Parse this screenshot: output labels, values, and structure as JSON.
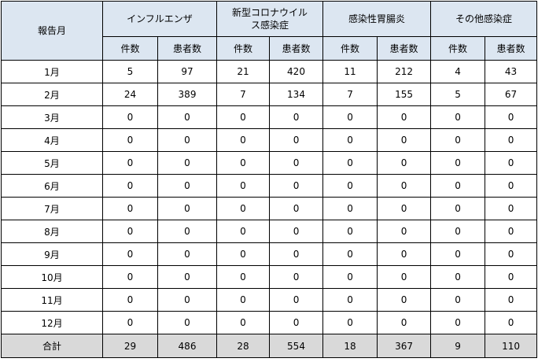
{
  "table": {
    "month_header": "報告月",
    "groups": [
      {
        "name": "インフルエンザ"
      },
      {
        "name": "新型コロナウイルス感染症"
      },
      {
        "name": "感染性胃腸炎"
      },
      {
        "name": "その他感染症"
      }
    ],
    "sub_headers": {
      "cases": "件数",
      "patients": "患者数"
    },
    "rows": [
      {
        "month": "1月",
        "v": [
          "5",
          "97",
          "21",
          "420",
          "11",
          "212",
          "4",
          "43"
        ]
      },
      {
        "month": "2月",
        "v": [
          "24",
          "389",
          "7",
          "134",
          "7",
          "155",
          "5",
          "67"
        ]
      },
      {
        "month": "3月",
        "v": [
          "0",
          "0",
          "0",
          "0",
          "0",
          "0",
          "0",
          "0"
        ]
      },
      {
        "month": "4月",
        "v": [
          "0",
          "0",
          "0",
          "0",
          "0",
          "0",
          "0",
          "0"
        ]
      },
      {
        "month": "5月",
        "v": [
          "0",
          "0",
          "0",
          "0",
          "0",
          "0",
          "0",
          "0"
        ]
      },
      {
        "month": "6月",
        "v": [
          "0",
          "0",
          "0",
          "0",
          "0",
          "0",
          "0",
          "0"
        ]
      },
      {
        "month": "7月",
        "v": [
          "0",
          "0",
          "0",
          "0",
          "0",
          "0",
          "0",
          "0"
        ]
      },
      {
        "month": "8月",
        "v": [
          "0",
          "0",
          "0",
          "0",
          "0",
          "0",
          "0",
          "0"
        ]
      },
      {
        "month": "9月",
        "v": [
          "0",
          "0",
          "0",
          "0",
          "0",
          "0",
          "0",
          "0"
        ]
      },
      {
        "month": "10月",
        "v": [
          "0",
          "0",
          "0",
          "0",
          "0",
          "0",
          "0",
          "0"
        ]
      },
      {
        "month": "11月",
        "v": [
          "0",
          "0",
          "0",
          "0",
          "0",
          "0",
          "0",
          "0"
        ]
      },
      {
        "month": "12月",
        "v": [
          "0",
          "0",
          "0",
          "0",
          "0",
          "0",
          "0",
          "0"
        ]
      }
    ],
    "total": {
      "label": "合計",
      "v": [
        "29",
        "486",
        "28",
        "554",
        "18",
        "367",
        "9",
        "110"
      ]
    }
  },
  "colors": {
    "header_bg": "#dce6f1",
    "total_bg": "#d9d9d9",
    "border": "#000000"
  }
}
